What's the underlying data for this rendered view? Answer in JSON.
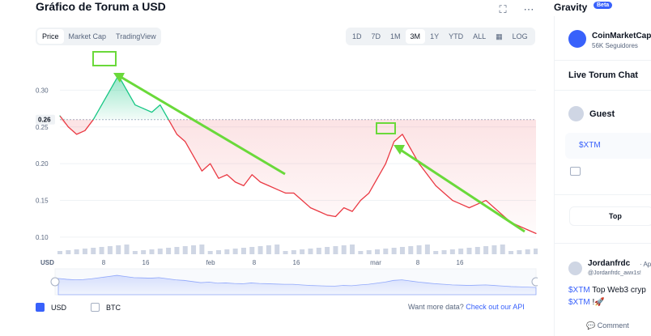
{
  "header": {
    "title": "Gráfico de Torum a USD",
    "expand_icon": "expand-icon",
    "more_icon": "more-horizontal-icon"
  },
  "tabs_left": [
    "Price",
    "Market Cap",
    "TradingView"
  ],
  "tabs_left_active": "Price",
  "tabs_right": [
    "1D",
    "7D",
    "1M",
    "3M",
    "1Y",
    "YTD",
    "ALL"
  ],
  "tabs_right_active": "3M",
  "tabs_right_extra": {
    "calendar_icon": "calendar-icon",
    "log_label": "LOG"
  },
  "chart_data": {
    "type": "line",
    "currency_label": "USD",
    "y_ticks": [
      "0.30",
      "0.25",
      "0.20",
      "0.15",
      "0.10"
    ],
    "ylim": [
      0.09,
      0.35
    ],
    "current_price_label": "0.26",
    "x_ticks": [
      "8",
      "16",
      "feb",
      "8",
      "16",
      "mar",
      "8",
      "16"
    ],
    "series": [
      {
        "values": [
          0.265,
          0.25,
          0.24,
          0.245,
          0.26,
          0.28,
          0.3,
          0.32,
          0.3,
          0.28,
          0.275,
          0.27,
          0.28,
          0.26,
          0.24,
          0.23,
          0.21,
          0.19,
          0.2,
          0.18,
          0.185,
          0.175,
          0.17,
          0.185,
          0.175,
          0.17,
          0.165,
          0.16,
          0.16,
          0.15,
          0.14,
          0.135,
          0.13,
          0.128,
          0.14,
          0.135,
          0.15,
          0.16,
          0.18,
          0.2,
          0.23,
          0.24,
          0.22,
          0.2,
          0.185,
          0.17,
          0.16,
          0.15,
          0.145,
          0.14,
          0.145,
          0.15,
          0.14,
          0.13,
          0.12,
          0.115,
          0.11,
          0.105
        ]
      }
    ],
    "annotations": [
      "green-box-peak-1",
      "green-box-peak-2",
      "green-arrow-1",
      "green-arrow-2"
    ]
  },
  "legend": {
    "usd_label": "USD",
    "btc_label": "BTC",
    "more_text": "Want more data?",
    "api_link": "Check out our API"
  },
  "sidebar": {
    "title": "Gravity",
    "badge": "Beta",
    "source_name": "CoinMarketCap",
    "followers": "56K Seguidores",
    "chat_title": "Live Torum Chat",
    "guest_name": "Guest",
    "input_value": "$XTM",
    "top_label": "Top",
    "post_author": "Jordanfrdc",
    "post_date": "· Apr",
    "post_handle": "@Jordanfrdc_awx1s!",
    "post_tag1": "$XTM",
    "post_text1": " Top Web3 cryp",
    "post_tag2": "$XTM",
    "post_text2": " !🚀",
    "comment_label": "Comment",
    "accent": "#3861fb"
  }
}
